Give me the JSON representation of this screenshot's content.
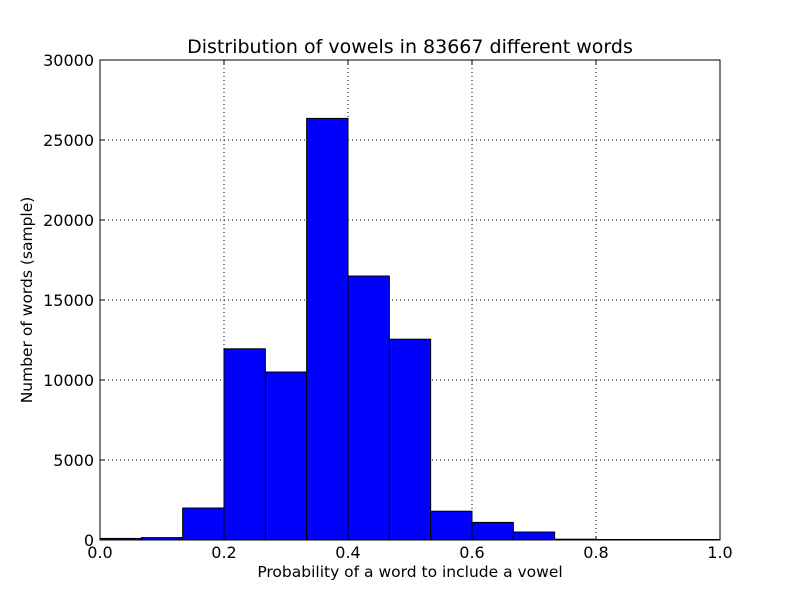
{
  "chart_data": {
    "type": "bar",
    "title": "Distribution of vowels in 83667 different words",
    "xlabel": "Probability of a word to include a vowel",
    "ylabel": "Number of words (sample)",
    "xlim": [
      0.0,
      1.0
    ],
    "ylim": [
      0,
      30000
    ],
    "x_ticks": [
      "0.0",
      "0.2",
      "0.4",
      "0.6",
      "0.8",
      "1.0"
    ],
    "y_ticks": [
      "0",
      "5000",
      "10000",
      "15000",
      "20000",
      "25000",
      "30000"
    ],
    "grid": true,
    "legend": "none",
    "bar_color": "#0000ff",
    "edge_color": "#000000",
    "bins": [
      {
        "x0": 0.0,
        "x1": 0.0667,
        "value": 100
      },
      {
        "x0": 0.0667,
        "x1": 0.1333,
        "value": 150
      },
      {
        "x0": 0.1333,
        "x1": 0.2,
        "value": 2000
      },
      {
        "x0": 0.2,
        "x1": 0.2667,
        "value": 11950
      },
      {
        "x0": 0.2667,
        "x1": 0.3333,
        "value": 10500
      },
      {
        "x0": 0.3333,
        "x1": 0.4,
        "value": 26350
      },
      {
        "x0": 0.4,
        "x1": 0.4667,
        "value": 16500
      },
      {
        "x0": 0.4667,
        "x1": 0.5333,
        "value": 12550
      },
      {
        "x0": 0.5333,
        "x1": 0.6,
        "value": 1800
      },
      {
        "x0": 0.6,
        "x1": 0.6667,
        "value": 1100
      },
      {
        "x0": 0.6667,
        "x1": 0.7333,
        "value": 500
      },
      {
        "x0": 0.7333,
        "x1": 0.8,
        "value": 50
      },
      {
        "x0": 0.8,
        "x1": 0.8667,
        "value": 10
      },
      {
        "x0": 0.8667,
        "x1": 0.9333,
        "value": 5
      },
      {
        "x0": 0.9333,
        "x1": 1.0,
        "value": 3
      }
    ]
  }
}
